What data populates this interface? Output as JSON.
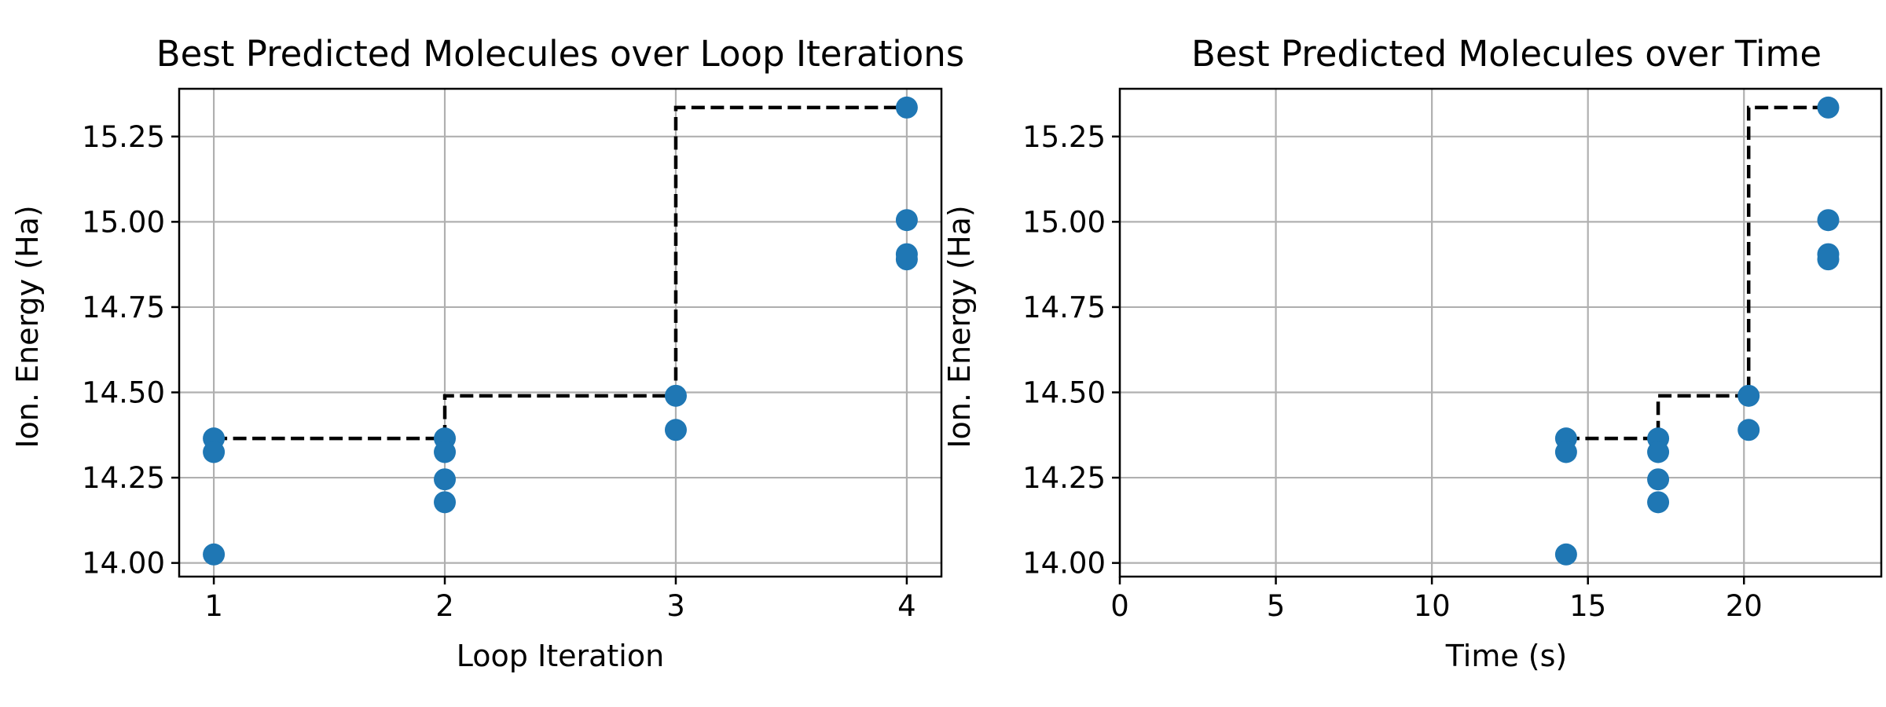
{
  "chart_data": [
    {
      "type": "scatter",
      "title": "Best Predicted Molecules over Loop Iterations",
      "xlabel": "Loop Iteration",
      "ylabel": "Ion. Energy (Ha)",
      "xlim": [
        0.85,
        4.15
      ],
      "ylim": [
        13.96,
        15.39
      ],
      "xticks": [
        1,
        2,
        3,
        4
      ],
      "xtick_labels": [
        "1",
        "2",
        "3",
        "4"
      ],
      "yticks": [
        14.0,
        14.25,
        14.5,
        14.75,
        15.0,
        15.25
      ],
      "ytick_labels": [
        "14.00",
        "14.25",
        "14.50",
        "14.75",
        "15.00",
        "15.25"
      ],
      "grid": true,
      "point_color": "#1f77b4",
      "points": [
        {
          "x": 1,
          "y": 14.365
        },
        {
          "x": 1,
          "y": 14.325
        },
        {
          "x": 1,
          "y": 14.025
        },
        {
          "x": 2,
          "y": 14.365
        },
        {
          "x": 2,
          "y": 14.325
        },
        {
          "x": 2,
          "y": 14.245
        },
        {
          "x": 2,
          "y": 14.178
        },
        {
          "x": 3,
          "y": 14.49
        },
        {
          "x": 3,
          "y": 14.39
        },
        {
          "x": 4,
          "y": 15.335
        },
        {
          "x": 4,
          "y": 15.005
        },
        {
          "x": 4,
          "y": 14.905
        },
        {
          "x": 4,
          "y": 14.89
        }
      ],
      "best_line": {
        "style": "dashed",
        "color": "#000000",
        "steps": [
          {
            "x": 1,
            "y": 14.365
          },
          {
            "x": 2,
            "y": 14.365
          },
          {
            "x": 2,
            "y": 14.49
          },
          {
            "x": 3,
            "y": 14.49
          },
          {
            "x": 3,
            "y": 15.335
          },
          {
            "x": 4,
            "y": 15.335
          }
        ]
      }
    },
    {
      "type": "scatter",
      "title": "Best Predicted Molecules over Time",
      "xlabel": "Time (s)",
      "ylabel": "Ion. Energy (Ha)",
      "xlim": [
        0,
        24.4
      ],
      "ylim": [
        13.96,
        15.39
      ],
      "xticks": [
        0,
        5,
        10,
        15,
        20
      ],
      "xtick_labels": [
        "0",
        "5",
        "10",
        "15",
        "20"
      ],
      "yticks": [
        14.0,
        14.25,
        14.5,
        14.75,
        15.0,
        15.25
      ],
      "ytick_labels": [
        "14.00",
        "14.25",
        "14.50",
        "14.75",
        "15.00",
        "15.25"
      ],
      "grid": true,
      "point_color": "#1f77b4",
      "points": [
        {
          "x": 14.3,
          "y": 14.365
        },
        {
          "x": 14.3,
          "y": 14.325
        },
        {
          "x": 14.3,
          "y": 14.025
        },
        {
          "x": 17.25,
          "y": 14.365
        },
        {
          "x": 17.25,
          "y": 14.325
        },
        {
          "x": 17.25,
          "y": 14.245
        },
        {
          "x": 17.25,
          "y": 14.178
        },
        {
          "x": 20.15,
          "y": 14.49
        },
        {
          "x": 20.15,
          "y": 14.39
        },
        {
          "x": 22.7,
          "y": 15.335
        },
        {
          "x": 22.7,
          "y": 15.005
        },
        {
          "x": 22.7,
          "y": 14.905
        },
        {
          "x": 22.7,
          "y": 14.89
        }
      ],
      "best_line": {
        "style": "dashed",
        "color": "#000000",
        "steps": [
          {
            "x": 14.3,
            "y": 14.365
          },
          {
            "x": 17.25,
            "y": 14.365
          },
          {
            "x": 17.25,
            "y": 14.49
          },
          {
            "x": 20.15,
            "y": 14.49
          },
          {
            "x": 20.15,
            "y": 15.335
          },
          {
            "x": 22.7,
            "y": 15.335
          }
        ]
      }
    }
  ]
}
